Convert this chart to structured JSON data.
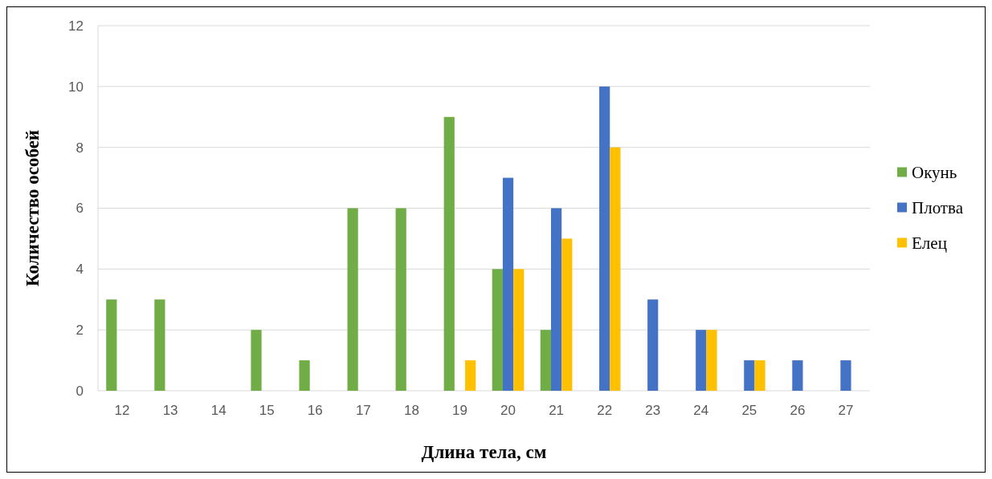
{
  "chart_data": {
    "type": "bar",
    "xlabel": "Длина тела, см",
    "ylabel": "Количество особей",
    "categories": [
      "12",
      "13",
      "14",
      "15",
      "16",
      "17",
      "18",
      "19",
      "20",
      "21",
      "22",
      "23",
      "24",
      "25",
      "26",
      "27"
    ],
    "series": [
      {
        "name": "Окунь",
        "color": "#70ad47",
        "values": [
          3,
          3,
          0,
          2,
          1,
          6,
          6,
          9,
          4,
          2,
          0,
          0,
          0,
          0,
          0,
          0
        ]
      },
      {
        "name": "Плотва",
        "color": "#4472c4",
        "values": [
          0,
          0,
          0,
          0,
          0,
          0,
          0,
          0,
          7,
          6,
          10,
          3,
          2,
          1,
          1,
          1
        ]
      },
      {
        "name": "Елец",
        "color": "#ffc000",
        "values": [
          0,
          0,
          0,
          0,
          0,
          0,
          0,
          1,
          4,
          5,
          8,
          0,
          2,
          1,
          0,
          0
        ]
      }
    ],
    "ylim": [
      0,
      12
    ],
    "yticks": [
      0,
      2,
      4,
      6,
      8,
      10,
      12
    ],
    "grid": "y",
    "legend": "right"
  }
}
